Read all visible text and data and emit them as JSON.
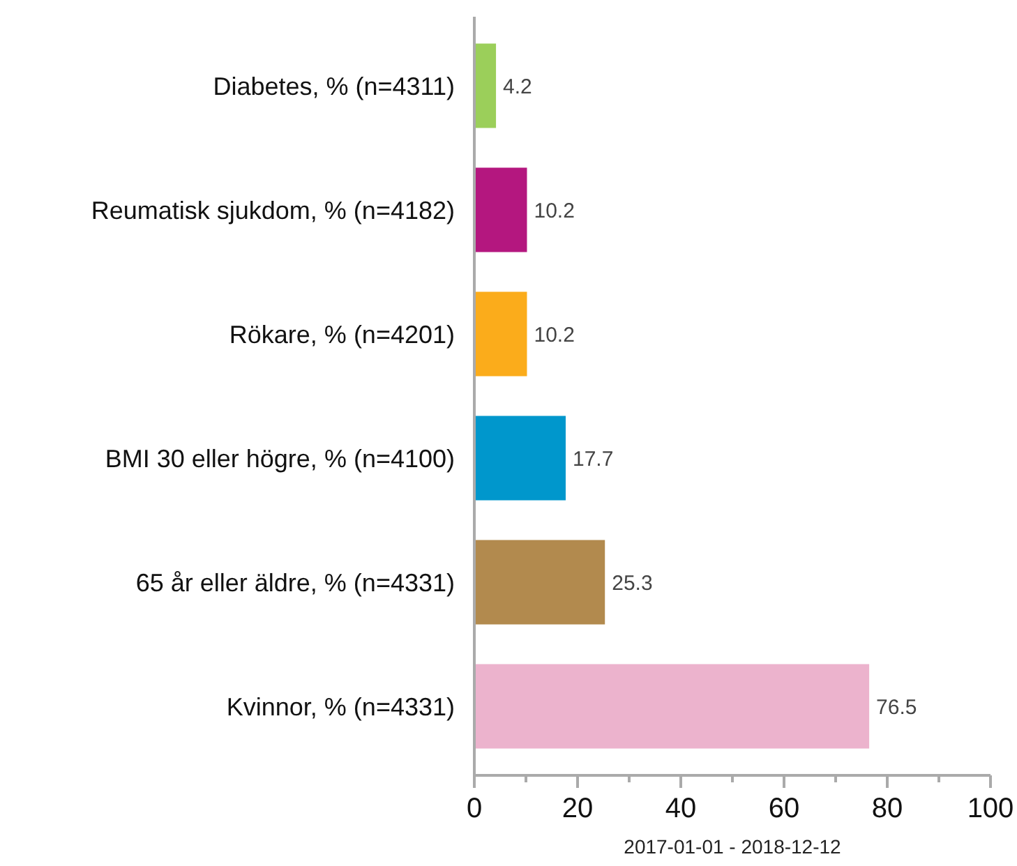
{
  "chart_data": {
    "type": "bar",
    "orientation": "horizontal",
    "xlabel": "2017-01-01 - 2018-12-12",
    "categories": [
      "Diabetes, % (n=4311)",
      "Reumatisk sjukdom, % (n=4182)",
      "Rökare, % (n=4201)",
      "BMI 30 eller högre, % (n=4100)",
      "65 år eller äldre, % (n=4331)",
      "Kvinnor, % (n=4331)"
    ],
    "values": [
      4.2,
      10.2,
      10.2,
      17.7,
      25.3,
      76.5
    ],
    "colors": [
      "#9bcf5a",
      "#b4177f",
      "#fbac1b",
      "#0097cc",
      "#b28a4e",
      "#ecb3cd"
    ],
    "data_labels": true,
    "xlim": [
      0,
      100
    ],
    "xticks": [
      0,
      {
        "value": 10,
        "label": null
      },
      20,
      {
        "value": 30,
        "label": null
      },
      40,
      {
        "value": 50,
        "label": null
      },
      60,
      {
        "value": 70,
        "label": null
      },
      80,
      {
        "value": 90,
        "label": null
      },
      100
    ],
    "grid": false
  }
}
